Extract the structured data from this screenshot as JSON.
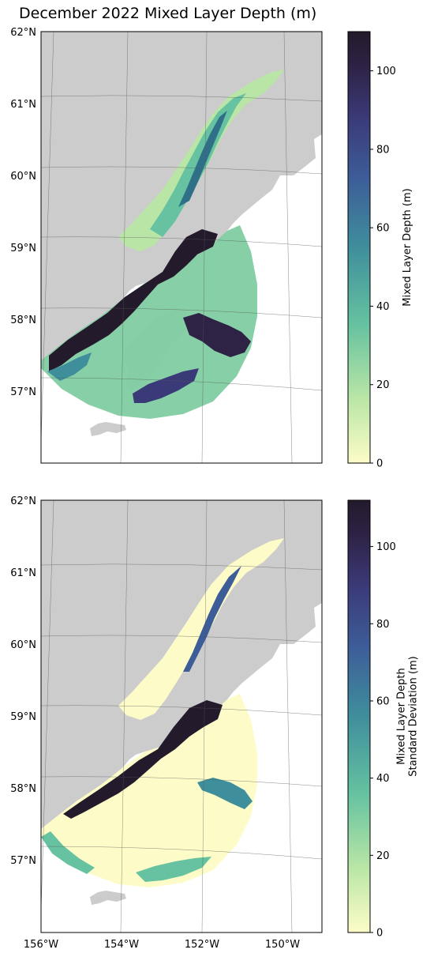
{
  "title": "December 2022 Mixed Layer Depth (m)",
  "panels": [
    {
      "name": "mean",
      "lat_ticks": [
        "62°N",
        "61°N",
        "60°N",
        "59°N",
        "58°N",
        "57°N"
      ],
      "colorbar": {
        "label_lines": [
          "Mixed Layer Depth (m)"
        ],
        "range": [
          0,
          110
        ],
        "ticks": [
          "0",
          "20",
          "40",
          "60",
          "80",
          "100"
        ]
      }
    },
    {
      "name": "stddev",
      "lat_ticks": [
        "62°N",
        "61°N",
        "60°N",
        "59°N",
        "58°N",
        "57°N"
      ],
      "colorbar": {
        "label_lines": [
          "Mixed Layer Depth",
          "Standard Deviation (m)"
        ],
        "range": [
          0,
          112
        ],
        "ticks": [
          "0",
          "20",
          "40",
          "60",
          "80",
          "100"
        ]
      }
    }
  ],
  "lon_ticks": [
    "156°W",
    "154°W",
    "152°W",
    "150°W"
  ],
  "colormap": [
    "#fdfcc8",
    "#b9e6a6",
    "#66c2a0",
    "#3f8e9c",
    "#3d5d98",
    "#3b3a78",
    "#2e2245",
    "#231a2b"
  ],
  "colors": {
    "land": "#cccccc",
    "water": "#ffffff",
    "grid": "#555555"
  }
}
